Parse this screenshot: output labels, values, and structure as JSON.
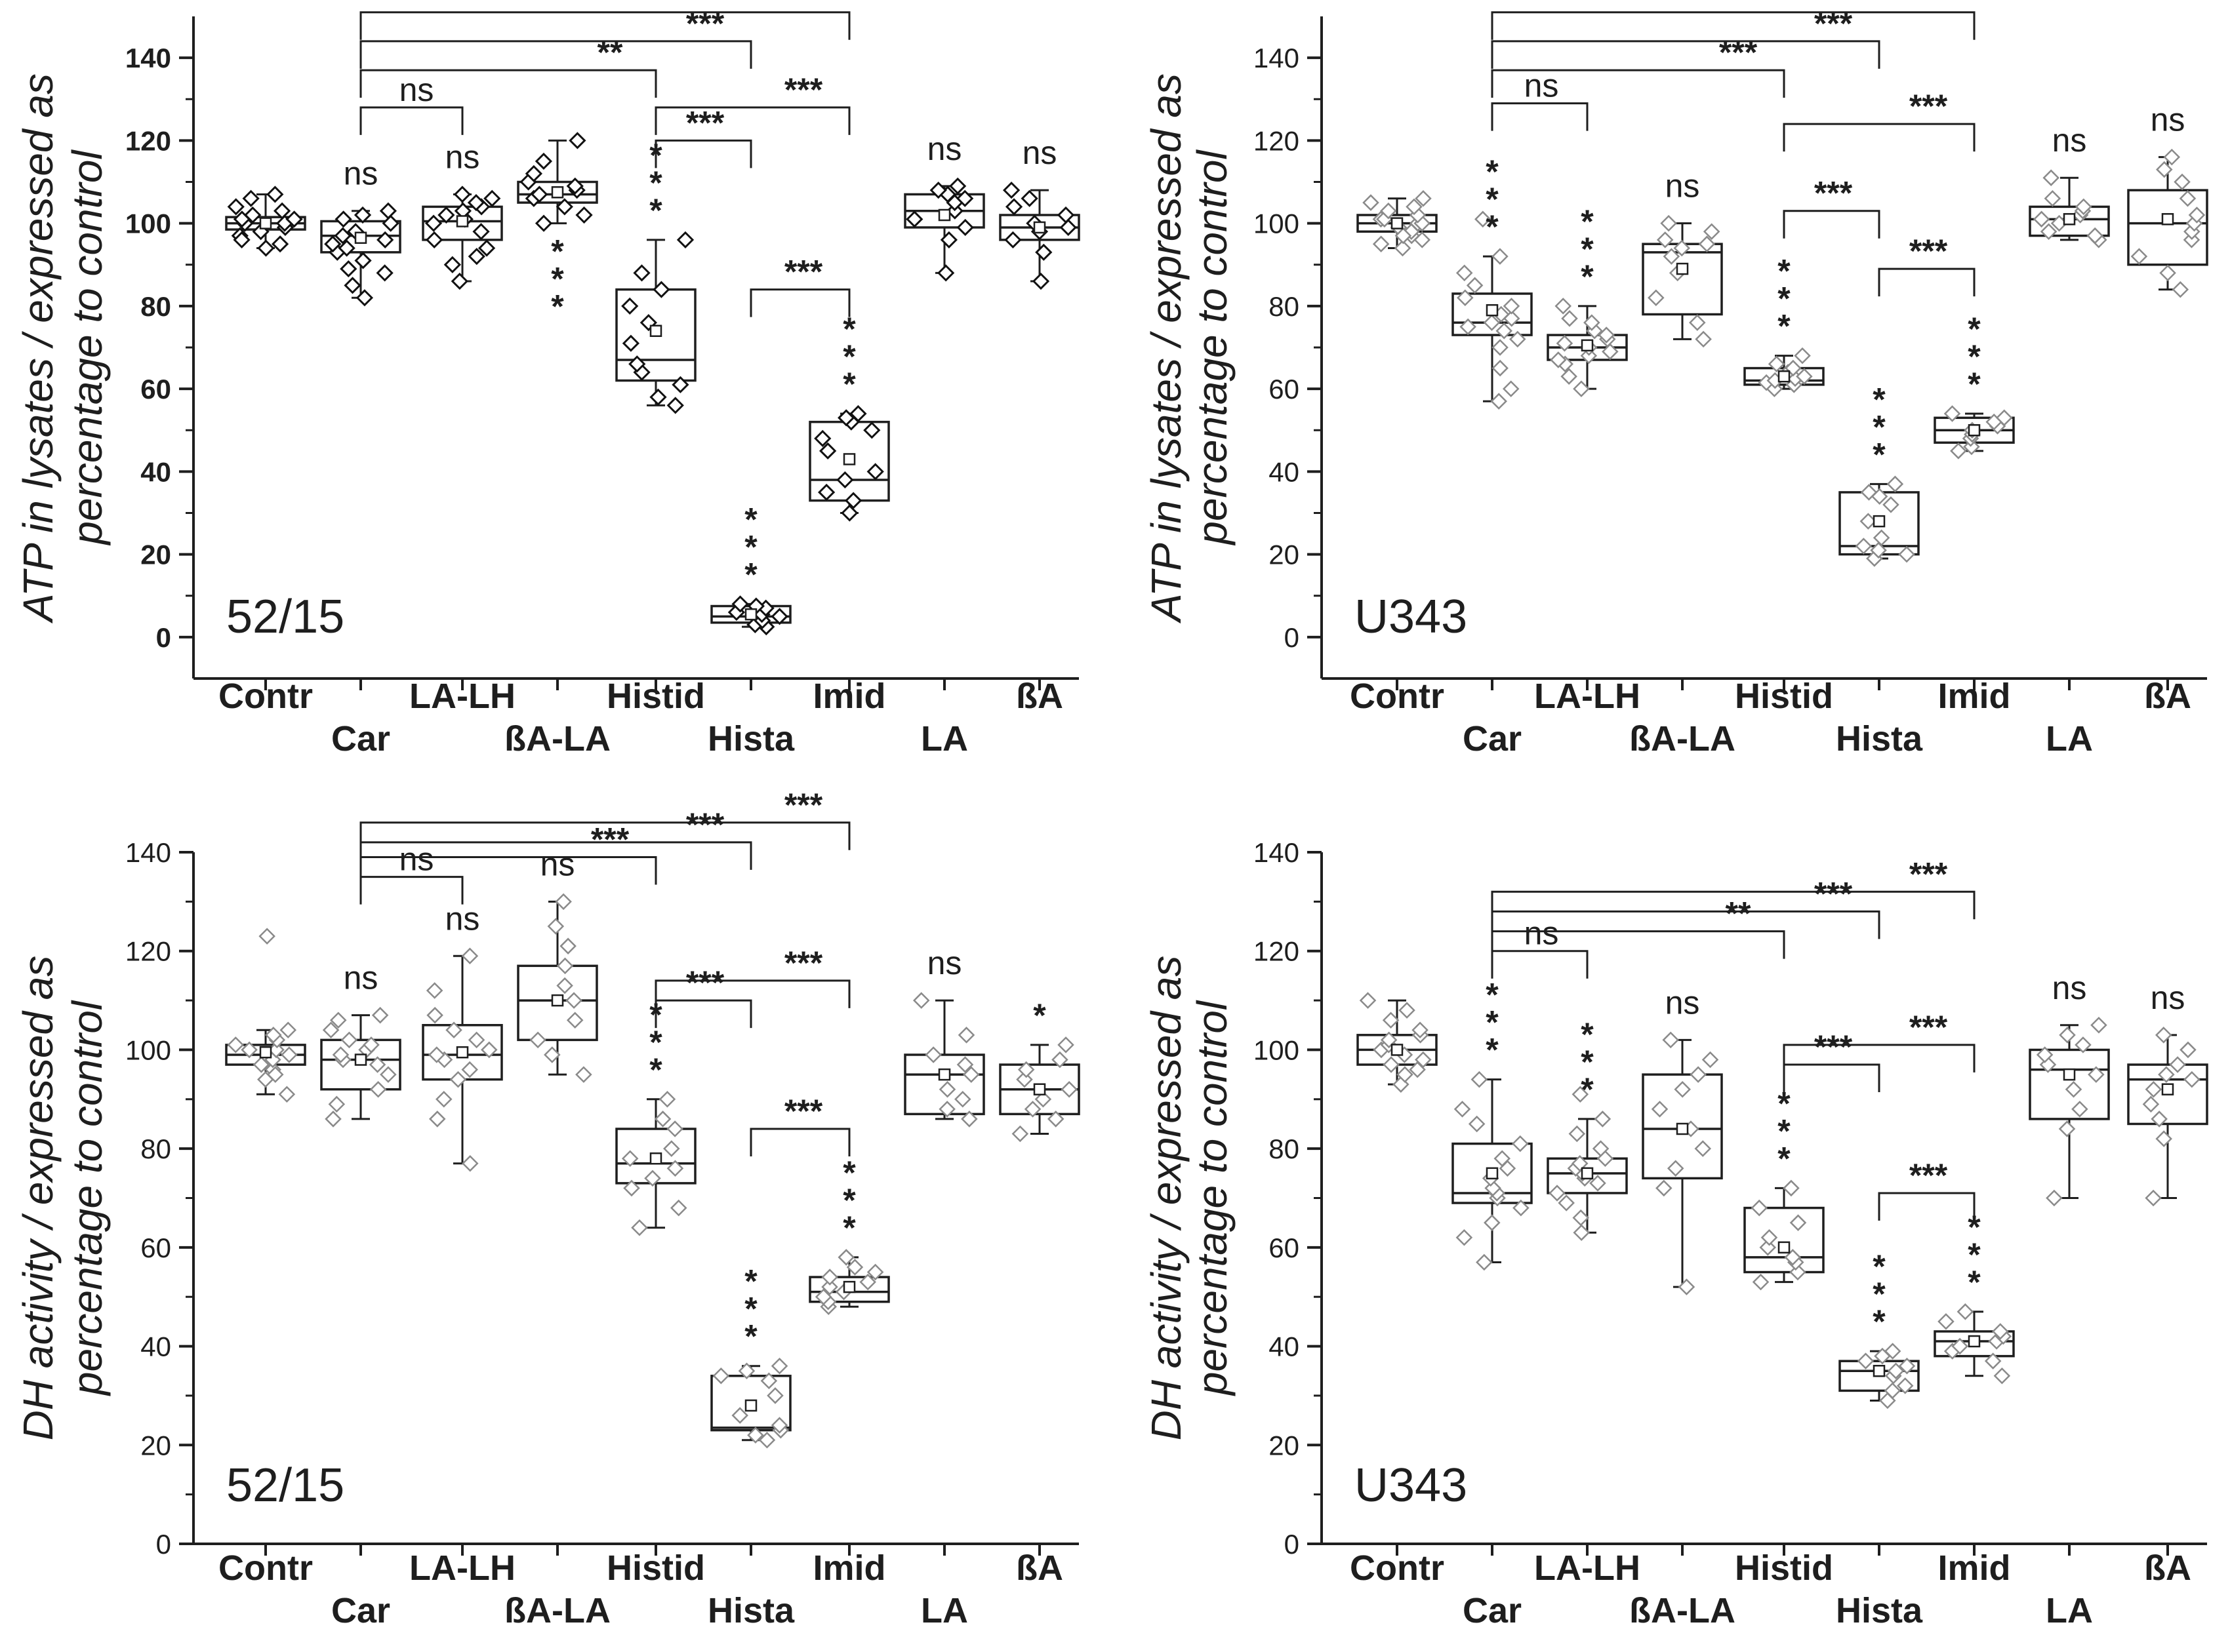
{
  "chart_data": [
    {
      "type": "box",
      "panel": "top-left",
      "cell_line": "52/15",
      "ylabel_line1": "ATP in lysates / expressed as",
      "ylabel_line2": "percentage to control",
      "ylim": [
        -10,
        150
      ],
      "yticks": [
        0,
        20,
        40,
        60,
        80,
        100,
        120,
        140
      ],
      "bold_ticks": true,
      "point_style": "dark",
      "categories": [
        "Contr",
        "Car",
        "LA-LH",
        "ßA-LA",
        "Histid",
        "Hista",
        "Imid",
        "LA",
        "ßA"
      ],
      "boxes": [
        {
          "q1": 98.5,
          "median": 100,
          "q3": 101.5,
          "mean": 100,
          "wl": 94,
          "wh": 107
        },
        {
          "q1": 93,
          "median": 97,
          "q3": 100.5,
          "mean": 96.5,
          "wl": 82,
          "wh": 103
        },
        {
          "q1": 96,
          "median": 100.5,
          "q3": 104,
          "mean": 100.5,
          "wl": 86,
          "wh": 107
        },
        {
          "q1": 105,
          "median": 107,
          "q3": 110,
          "mean": 107.5,
          "wl": 100,
          "wh": 120
        },
        {
          "q1": 62,
          "median": 67,
          "q3": 84,
          "mean": 74,
          "wl": 56,
          "wh": 96
        },
        {
          "q1": 3.5,
          "median": 5,
          "q3": 7.5,
          "mean": 5.5,
          "wl": 2.5,
          "wh": 8
        },
        {
          "q1": 33,
          "median": 38,
          "q3": 52,
          "mean": 43,
          "wl": 30,
          "wh": 54
        },
        {
          "q1": 99,
          "median": 103,
          "q3": 107,
          "mean": 102,
          "wl": 88,
          "wh": 109
        },
        {
          "q1": 96,
          "median": 99,
          "q3": 102,
          "mean": 99,
          "wl": 86,
          "wh": 108
        }
      ],
      "points": [
        [
          95,
          97,
          98,
          99,
          100,
          100,
          101,
          101,
          102,
          103,
          104,
          106,
          107,
          94,
          96
        ],
        [
          82,
          85,
          89,
          91,
          93,
          95,
          96,
          97,
          98,
          100,
          101,
          102,
          103,
          88,
          94
        ],
        [
          86,
          90,
          94,
          96,
          98,
          100,
          101,
          102,
          103,
          104,
          105,
          106,
          107,
          92
        ],
        [
          100,
          102,
          104,
          106,
          107,
          108,
          109,
          110,
          112,
          115,
          120
        ],
        [
          56,
          58,
          61,
          64,
          66,
          71,
          76,
          80,
          84,
          88,
          96
        ],
        [
          2.5,
          3,
          4,
          5,
          5.5,
          6,
          7,
          7.5,
          8
        ],
        [
          30,
          33,
          35,
          38,
          40,
          45,
          48,
          50,
          52,
          53,
          54
        ],
        [
          88,
          96,
          99,
          101,
          103,
          105,
          106,
          107,
          108,
          109
        ],
        [
          86,
          93,
          96,
          98,
          99,
          100,
          102,
          104,
          106,
          108
        ]
      ],
      "stars": [
        "",
        "ns",
        "ns",
        "***",
        "***",
        "***",
        "***",
        "ns",
        "ns"
      ],
      "star_side": [
        "top",
        "top",
        "top",
        "bottom",
        "top",
        "top",
        "top",
        "top",
        "top"
      ],
      "brackets": [
        {
          "from": 1,
          "to": 6,
          "y": 151,
          "label": "***"
        },
        {
          "from": 1,
          "to": 5,
          "y": 144,
          "label": "***"
        },
        {
          "from": 1,
          "to": 4,
          "y": 137,
          "label": "**"
        },
        {
          "from": 1,
          "to": 2,
          "y": 128,
          "label": "ns"
        },
        {
          "from": 4,
          "to": 6,
          "y": 128,
          "label": "***"
        },
        {
          "from": 4,
          "to": 5,
          "y": 120,
          "label": "***"
        },
        {
          "from": 5,
          "to": 6,
          "y": 84,
          "label": "***"
        }
      ]
    },
    {
      "type": "box",
      "panel": "top-right",
      "cell_line": "U343",
      "ylabel_line1": "ATP in lysates / expressed as",
      "ylabel_line2": "percentage to control",
      "ylim": [
        -10,
        150
      ],
      "yticks": [
        0,
        20,
        40,
        60,
        80,
        100,
        120,
        140
      ],
      "bold_ticks": false,
      "point_style": "light",
      "categories": [
        "Contr",
        "Car",
        "LA-LH",
        "ßA-LA",
        "Histid",
        "Hista",
        "Imid",
        "LA",
        "ßA"
      ],
      "boxes": [
        {
          "q1": 98,
          "median": 100,
          "q3": 102,
          "mean": 100,
          "wl": 94,
          "wh": 106
        },
        {
          "q1": 73,
          "median": 76,
          "q3": 83,
          "mean": 79,
          "wl": 57,
          "wh": 92
        },
        {
          "q1": 67,
          "median": 70,
          "q3": 73,
          "mean": 70.5,
          "wl": 60,
          "wh": 80
        },
        {
          "q1": 78,
          "median": 93,
          "q3": 95,
          "mean": 89,
          "wl": 72,
          "wh": 100
        },
        {
          "q1": 61,
          "median": 62,
          "q3": 65,
          "mean": 63,
          "wl": 60,
          "wh": 68
        },
        {
          "q1": 20,
          "median": 22,
          "q3": 35,
          "mean": 28,
          "wl": 19,
          "wh": 37
        },
        {
          "q1": 47,
          "median": 50,
          "q3": 53,
          "mean": 50,
          "wl": 45,
          "wh": 54
        },
        {
          "q1": 97,
          "median": 101,
          "q3": 104,
          "mean": 101,
          "wl": 96,
          "wh": 111
        },
        {
          "q1": 90,
          "median": 100,
          "q3": 108,
          "mean": 101,
          "wl": 84,
          "wh": 116
        }
      ],
      "points": [
        [
          94,
          96,
          97,
          98,
          99,
          100,
          100,
          101,
          101,
          102,
          103,
          104,
          105,
          106,
          97,
          95
        ],
        [
          57,
          60,
          65,
          70,
          72,
          74,
          75,
          76,
          77,
          78,
          80,
          82,
          85,
          88,
          92,
          101
        ],
        [
          60,
          63,
          66,
          67,
          68,
          69,
          70,
          71,
          72,
          73,
          74,
          76,
          77,
          80
        ],
        [
          72,
          76,
          82,
          88,
          92,
          94,
          95,
          96,
          98,
          100
        ],
        [
          60,
          61,
          61.5,
          62,
          62.5,
          63,
          64,
          65,
          66,
          68
        ],
        [
          19,
          20,
          21,
          22,
          24,
          28,
          32,
          34,
          35,
          37
        ],
        [
          45,
          46,
          48,
          49,
          50,
          51,
          52,
          53,
          54
        ],
        [
          96,
          97,
          98,
          100,
          101,
          102,
          103,
          104,
          106,
          111
        ],
        [
          84,
          88,
          92,
          96,
          98,
          100,
          102,
          106,
          110,
          113,
          116
        ]
      ],
      "stars": [
        "",
        "***",
        "***",
        "ns",
        "***",
        "***",
        "***",
        "ns",
        "ns"
      ],
      "star_side": [
        "top",
        "top",
        "top",
        "top",
        "top",
        "top",
        "top",
        "top",
        "top"
      ],
      "brackets": [
        {
          "from": 1,
          "to": 6,
          "y": 151,
          "label": "***"
        },
        {
          "from": 1,
          "to": 5,
          "y": 144,
          "label": "***"
        },
        {
          "from": 1,
          "to": 4,
          "y": 137,
          "label": "***"
        },
        {
          "from": 1,
          "to": 2,
          "y": 129,
          "label": "ns"
        },
        {
          "from": 4,
          "to": 6,
          "y": 124,
          "label": "***"
        },
        {
          "from": 4,
          "to": 5,
          "y": 103,
          "label": "***"
        },
        {
          "from": 5,
          "to": 6,
          "y": 89,
          "label": "***"
        }
      ]
    },
    {
      "type": "box",
      "panel": "bottom-left",
      "cell_line": "52/15",
      "ylabel_line1": "DH activity / expressed as",
      "ylabel_line2": "percentage to control",
      "ylim": [
        0,
        140
      ],
      "yticks": [
        0,
        20,
        40,
        60,
        80,
        100,
        120,
        140
      ],
      "bold_ticks": false,
      "point_style": "light",
      "categories": [
        "Contr",
        "Car",
        "LA-LH",
        "ßA-LA",
        "Histid",
        "Hista",
        "Imid",
        "LA",
        "ßA"
      ],
      "boxes": [
        {
          "q1": 97,
          "median": 99,
          "q3": 101,
          "mean": 99.5,
          "wl": 91,
          "wh": 104
        },
        {
          "q1": 92,
          "median": 98,
          "q3": 102,
          "mean": 98,
          "wl": 86,
          "wh": 107
        },
        {
          "q1": 94,
          "median": 99,
          "q3": 105,
          "mean": 99.5,
          "wl": 77,
          "wh": 119
        },
        {
          "q1": 102,
          "median": 110,
          "q3": 117,
          "mean": 110,
          "wl": 95,
          "wh": 130
        },
        {
          "q1": 73,
          "median": 77,
          "q3": 84,
          "mean": 78,
          "wl": 64,
          "wh": 90
        },
        {
          "q1": 23,
          "median": 23.5,
          "q3": 34,
          "mean": 28,
          "wl": 21,
          "wh": 36
        },
        {
          "q1": 49,
          "median": 51,
          "q3": 54,
          "mean": 52,
          "wl": 48,
          "wh": 58
        },
        {
          "q1": 87,
          "median": 95,
          "q3": 99,
          "mean": 95,
          "wl": 86,
          "wh": 110
        },
        {
          "q1": 87,
          "median": 92,
          "q3": 97,
          "mean": 92,
          "wl": 83,
          "wh": 101
        }
      ],
      "points": [
        [
          91,
          94,
          96,
          97,
          98,
          99,
          100,
          100,
          101,
          102,
          103,
          104,
          95,
          123
        ],
        [
          86,
          89,
          92,
          95,
          97,
          98,
          99,
          100,
          101,
          102,
          104,
          106,
          107
        ],
        [
          77,
          86,
          90,
          94,
          96,
          98,
          99,
          100,
          102,
          104,
          107,
          112,
          119
        ],
        [
          95,
          99,
          102,
          106,
          110,
          113,
          117,
          121,
          125,
          130
        ],
        [
          64,
          68,
          72,
          74,
          76,
          78,
          80,
          84,
          86,
          90
        ],
        [
          21,
          22,
          23,
          24,
          26,
          30,
          33,
          34,
          35,
          36
        ],
        [
          48,
          49,
          50,
          51,
          52,
          53,
          54,
          55,
          56,
          58
        ],
        [
          86,
          88,
          90,
          92,
          95,
          97,
          99,
          103,
          110
        ],
        [
          83,
          86,
          88,
          90,
          92,
          94,
          96,
          98,
          101
        ]
      ],
      "stars": [
        "",
        "ns",
        "ns",
        "ns",
        "***",
        "***",
        "***",
        "ns",
        "*"
      ],
      "star_side": [
        "top",
        "top",
        "top",
        "top",
        "top",
        "top",
        "top",
        "top",
        "top"
      ],
      "brackets": [
        {
          "from": 1,
          "to": 6,
          "y": 146,
          "label": "***"
        },
        {
          "from": 1,
          "to": 5,
          "y": 142,
          "label": "***"
        },
        {
          "from": 1,
          "to": 4,
          "y": 139,
          "label": "***"
        },
        {
          "from": 1,
          "to": 2,
          "y": 135,
          "label": "ns"
        },
        {
          "from": 4,
          "to": 6,
          "y": 114,
          "label": "***"
        },
        {
          "from": 4,
          "to": 5,
          "y": 110,
          "label": "***"
        },
        {
          "from": 5,
          "to": 6,
          "y": 84,
          "label": "***"
        }
      ]
    },
    {
      "type": "box",
      "panel": "bottom-right",
      "cell_line": "U343",
      "ylabel_line1": "DH activity / expressed as",
      "ylabel_line2": "percentage to control",
      "ylim": [
        0,
        140
      ],
      "yticks": [
        0,
        20,
        40,
        60,
        80,
        100,
        120,
        140
      ],
      "bold_ticks": false,
      "point_style": "light",
      "categories": [
        "Contr",
        "Car",
        "LA-LH",
        "ßA-LA",
        "Histid",
        "Hista",
        "Imid",
        "LA",
        "ßA"
      ],
      "boxes": [
        {
          "q1": 97,
          "median": 100,
          "q3": 103,
          "mean": 100,
          "wl": 93,
          "wh": 110
        },
        {
          "q1": 69,
          "median": 71,
          "q3": 81,
          "mean": 75,
          "wl": 57,
          "wh": 94
        },
        {
          "q1": 71,
          "median": 75,
          "q3": 78,
          "mean": 75,
          "wl": 63,
          "wh": 86
        },
        {
          "q1": 74,
          "median": 84,
          "q3": 95,
          "mean": 84,
          "wl": 52,
          "wh": 102
        },
        {
          "q1": 55,
          "median": 58,
          "q3": 68,
          "mean": 60,
          "wl": 53,
          "wh": 72
        },
        {
          "q1": 31,
          "median": 35,
          "q3": 37,
          "mean": 35,
          "wl": 29,
          "wh": 39
        },
        {
          "q1": 38,
          "median": 41,
          "q3": 43,
          "mean": 41,
          "wl": 34,
          "wh": 47
        },
        {
          "q1": 86,
          "median": 96,
          "q3": 100,
          "mean": 95,
          "wl": 70,
          "wh": 105
        },
        {
          "q1": 85,
          "median": 94,
          "q3": 97,
          "mean": 92,
          "wl": 70,
          "wh": 103
        }
      ],
      "points": [
        [
          93,
          95,
          96,
          97,
          98,
          99,
          100,
          101,
          102,
          103,
          104,
          106,
          108,
          110
        ],
        [
          57,
          62,
          65,
          68,
          70,
          71,
          72,
          74,
          76,
          78,
          81,
          85,
          88,
          94
        ],
        [
          63,
          66,
          69,
          71,
          73,
          74,
          75,
          76,
          77,
          78,
          80,
          83,
          86,
          91
        ],
        [
          52,
          72,
          76,
          80,
          84,
          88,
          92,
          95,
          98,
          102
        ],
        [
          53,
          55,
          57,
          58,
          60,
          62,
          65,
          68,
          72
        ],
        [
          29,
          31,
          32,
          34,
          35,
          36,
          37,
          38,
          39
        ],
        [
          34,
          37,
          39,
          40,
          41,
          42,
          43,
          45,
          47
        ],
        [
          70,
          84,
          88,
          92,
          95,
          97,
          99,
          101,
          103,
          105
        ],
        [
          70,
          82,
          86,
          89,
          92,
          94,
          95,
          97,
          100,
          103
        ]
      ],
      "stars": [
        "",
        "***",
        "***",
        "ns",
        "***",
        "***",
        "***",
        "ns",
        "ns"
      ],
      "star_side": [
        "top",
        "top",
        "top",
        "top",
        "top",
        "top",
        "top",
        "top",
        "top"
      ],
      "brackets": [
        {
          "from": 1,
          "to": 6,
          "y": 132,
          "label": "***"
        },
        {
          "from": 1,
          "to": 5,
          "y": 128,
          "label": "***"
        },
        {
          "from": 1,
          "to": 4,
          "y": 124,
          "label": "**"
        },
        {
          "from": 1,
          "to": 2,
          "y": 120,
          "label": "ns"
        },
        {
          "from": 4,
          "to": 6,
          "y": 101,
          "label": "***"
        },
        {
          "from": 4,
          "to": 5,
          "y": 97,
          "label": "***"
        },
        {
          "from": 5,
          "to": 6,
          "y": 71,
          "label": "***"
        }
      ]
    }
  ]
}
